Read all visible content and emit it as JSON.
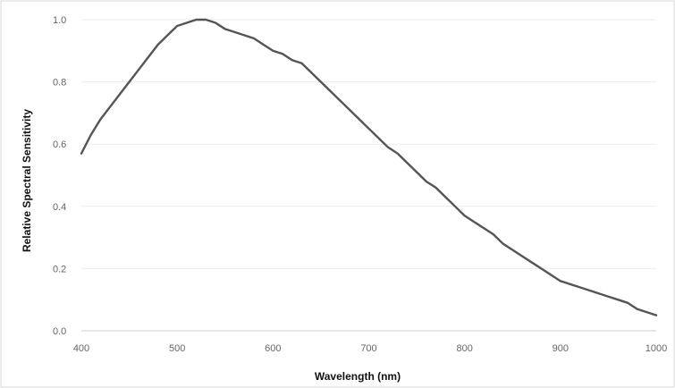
{
  "chart_data": {
    "type": "line",
    "title": "",
    "xlabel": "Wavelength (nm)",
    "ylabel": "Relative Spectral Sensitivity",
    "xlim": [
      400,
      1000
    ],
    "ylim": [
      0,
      1
    ],
    "x_ticks": [
      "400",
      "500",
      "600",
      "700",
      "800",
      "900",
      "1000"
    ],
    "y_ticks": [
      "0.0",
      "0.2",
      "0.4",
      "0.6",
      "0.8",
      "1.0"
    ],
    "grid": true,
    "legend": "none",
    "series": [
      {
        "color": "#555555",
        "x": [
          400,
          410,
          420,
          430,
          440,
          450,
          460,
          470,
          480,
          490,
          500,
          510,
          520,
          530,
          540,
          550,
          560,
          570,
          580,
          590,
          600,
          610,
          620,
          630,
          640,
          650,
          660,
          670,
          680,
          690,
          700,
          710,
          720,
          730,
          740,
          750,
          760,
          770,
          780,
          790,
          800,
          810,
          820,
          830,
          840,
          850,
          860,
          870,
          880,
          890,
          900,
          910,
          920,
          930,
          940,
          950,
          960,
          970,
          980,
          990,
          1000
        ],
        "y": [
          0.57,
          0.63,
          0.68,
          0.72,
          0.76,
          0.8,
          0.84,
          0.88,
          0.92,
          0.95,
          0.98,
          0.99,
          1.0,
          1.0,
          0.99,
          0.97,
          0.96,
          0.95,
          0.94,
          0.92,
          0.9,
          0.89,
          0.87,
          0.86,
          0.83,
          0.8,
          0.77,
          0.74,
          0.71,
          0.68,
          0.65,
          0.62,
          0.59,
          0.57,
          0.54,
          0.51,
          0.48,
          0.46,
          0.43,
          0.4,
          0.37,
          0.35,
          0.33,
          0.31,
          0.28,
          0.26,
          0.24,
          0.22,
          0.2,
          0.18,
          0.16,
          0.15,
          0.14,
          0.13,
          0.12,
          0.11,
          0.1,
          0.09,
          0.07,
          0.06,
          0.05
        ]
      }
    ]
  }
}
